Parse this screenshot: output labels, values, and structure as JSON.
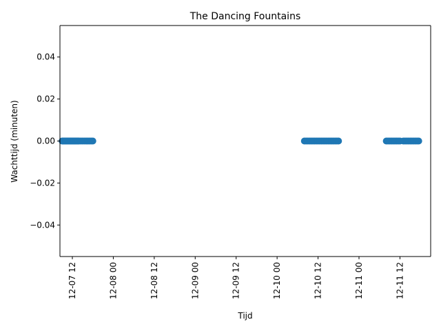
{
  "chart_data": {
    "type": "scatter",
    "title": "The Dancing Fountains",
    "xlabel": "Tijd",
    "ylabel": "Wachttijd (minuten)",
    "x_type": "datetime",
    "xlim": [
      "2024-12-07 08:22",
      "2024-12-11 21:00"
    ],
    "ylim": [
      -0.055,
      0.055
    ],
    "x_ticks": [
      "2024-12-07 12:00",
      "2024-12-08 00:00",
      "2024-12-08 12:00",
      "2024-12-09 00:00",
      "2024-12-09 12:00",
      "2024-12-10 00:00",
      "2024-12-10 12:00",
      "2024-12-11 00:00",
      "2024-12-11 12:00"
    ],
    "x_tick_labels": [
      "12-07 12",
      "12-08 00",
      "12-08 12",
      "12-09 00",
      "12-09 12",
      "12-10 00",
      "12-10 12",
      "12-11 00",
      "12-11 12"
    ],
    "y_ticks": [
      -0.04,
      -0.02,
      0.0,
      0.02,
      0.04
    ],
    "y_tick_labels": [
      "−0.04",
      "−0.02",
      "0.00",
      "0.02",
      "0.04"
    ],
    "grid": false,
    "series": [
      {
        "color": "#1f77b4",
        "points": [
          {
            "x": "2024-12-07 09:00",
            "y": 0
          },
          {
            "x": "2024-12-07 09:15",
            "y": 0
          },
          {
            "x": "2024-12-07 09:30",
            "y": 0
          },
          {
            "x": "2024-12-07 09:45",
            "y": 0
          },
          {
            "x": "2024-12-07 10:00",
            "y": 0
          },
          {
            "x": "2024-12-07 10:15",
            "y": 0
          },
          {
            "x": "2024-12-07 10:30",
            "y": 0
          },
          {
            "x": "2024-12-07 10:45",
            "y": 0
          },
          {
            "x": "2024-12-07 11:00",
            "y": 0
          },
          {
            "x": "2024-12-07 11:15",
            "y": 0
          },
          {
            "x": "2024-12-07 11:30",
            "y": 0
          },
          {
            "x": "2024-12-07 11:45",
            "y": 0
          },
          {
            "x": "2024-12-07 12:00",
            "y": 0
          },
          {
            "x": "2024-12-07 12:15",
            "y": 0
          },
          {
            "x": "2024-12-07 12:30",
            "y": 0
          },
          {
            "x": "2024-12-07 12:45",
            "y": 0
          },
          {
            "x": "2024-12-07 13:00",
            "y": 0
          },
          {
            "x": "2024-12-07 13:15",
            "y": 0
          },
          {
            "x": "2024-12-07 13:30",
            "y": 0
          },
          {
            "x": "2024-12-07 13:45",
            "y": 0
          },
          {
            "x": "2024-12-07 14:00",
            "y": 0
          },
          {
            "x": "2024-12-07 14:30",
            "y": 0
          },
          {
            "x": "2024-12-07 15:00",
            "y": 0
          },
          {
            "x": "2024-12-07 15:30",
            "y": 0
          },
          {
            "x": "2024-12-07 16:00",
            "y": 0
          },
          {
            "x": "2024-12-07 16:30",
            "y": 0
          },
          {
            "x": "2024-12-07 17:00",
            "y": 0
          },
          {
            "x": "2024-12-07 17:30",
            "y": 0
          },
          {
            "x": "2024-12-07 18:00",
            "y": 0
          },
          {
            "x": "2024-12-10 08:00",
            "y": 0
          },
          {
            "x": "2024-12-10 08:30",
            "y": 0
          },
          {
            "x": "2024-12-10 09:00",
            "y": 0
          },
          {
            "x": "2024-12-10 09:30",
            "y": 0
          },
          {
            "x": "2024-12-10 10:00",
            "y": 0
          },
          {
            "x": "2024-12-10 10:30",
            "y": 0
          },
          {
            "x": "2024-12-10 11:00",
            "y": 0
          },
          {
            "x": "2024-12-10 11:30",
            "y": 0
          },
          {
            "x": "2024-12-10 12:00",
            "y": 0
          },
          {
            "x": "2024-12-10 12:30",
            "y": 0
          },
          {
            "x": "2024-12-10 13:00",
            "y": 0
          },
          {
            "x": "2024-12-10 13:30",
            "y": 0
          },
          {
            "x": "2024-12-10 14:00",
            "y": 0
          },
          {
            "x": "2024-12-10 14:30",
            "y": 0
          },
          {
            "x": "2024-12-10 15:00",
            "y": 0
          },
          {
            "x": "2024-12-10 15:30",
            "y": 0
          },
          {
            "x": "2024-12-10 16:00",
            "y": 0
          },
          {
            "x": "2024-12-10 16:30",
            "y": 0
          },
          {
            "x": "2024-12-10 17:00",
            "y": 0
          },
          {
            "x": "2024-12-10 17:30",
            "y": 0
          },
          {
            "x": "2024-12-10 18:00",
            "y": 0
          },
          {
            "x": "2024-12-11 08:00",
            "y": 0
          },
          {
            "x": "2024-12-11 08:30",
            "y": 0
          },
          {
            "x": "2024-12-11 09:00",
            "y": 0
          },
          {
            "x": "2024-12-11 09:30",
            "y": 0
          },
          {
            "x": "2024-12-11 10:00",
            "y": 0
          },
          {
            "x": "2024-12-11 10:30",
            "y": 0
          },
          {
            "x": "2024-12-11 11:00",
            "y": 0
          },
          {
            "x": "2024-12-11 11:30",
            "y": 0
          },
          {
            "x": "2024-12-11 12:00",
            "y": 0
          },
          {
            "x": "2024-12-11 13:00",
            "y": 0
          },
          {
            "x": "2024-12-11 13:30",
            "y": 0
          },
          {
            "x": "2024-12-11 14:00",
            "y": 0
          },
          {
            "x": "2024-12-11 14:30",
            "y": 0
          },
          {
            "x": "2024-12-11 15:00",
            "y": 0
          },
          {
            "x": "2024-12-11 15:30",
            "y": 0
          },
          {
            "x": "2024-12-11 16:00",
            "y": 0
          },
          {
            "x": "2024-12-11 16:30",
            "y": 0
          },
          {
            "x": "2024-12-11 17:00",
            "y": 0
          },
          {
            "x": "2024-12-11 17:30",
            "y": 0
          }
        ]
      }
    ]
  }
}
